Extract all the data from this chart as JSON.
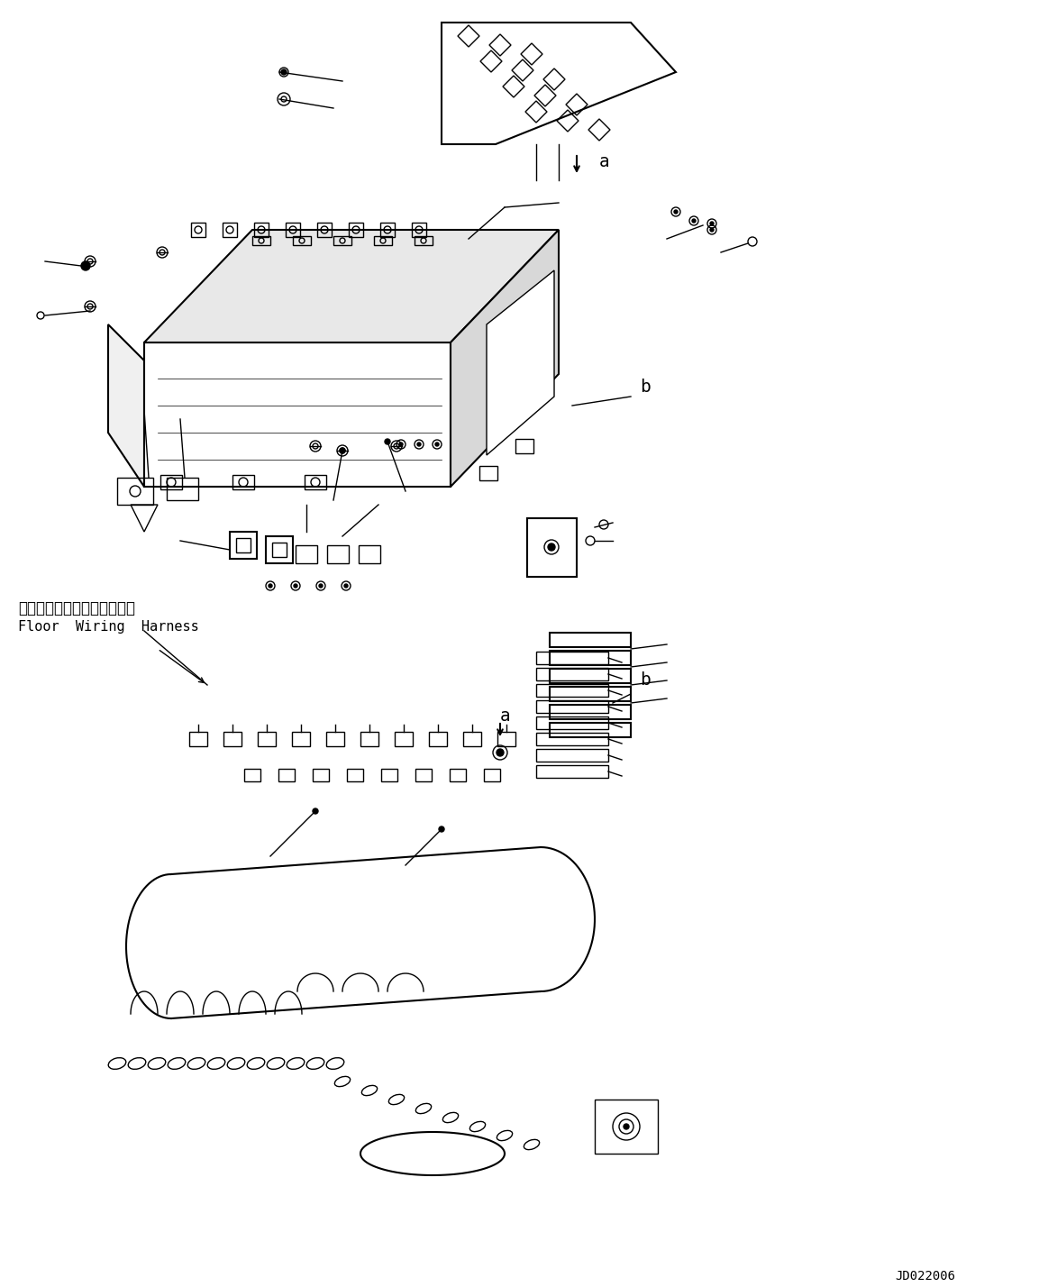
{
  "bg_color": "#ffffff",
  "line_color": "#000000",
  "fig_width": 11.63,
  "fig_height": 14.28,
  "dpi": 100,
  "label_a1": "a",
  "label_b1": "b",
  "label_a2": "a",
  "label_b2": "b",
  "label_floor_jp": "フロアワイヤリングハーネス",
  "label_floor_en": "Floor  Wiring  Harness",
  "code": "JD022006",
  "font_size_label": 14,
  "font_size_code": 10
}
